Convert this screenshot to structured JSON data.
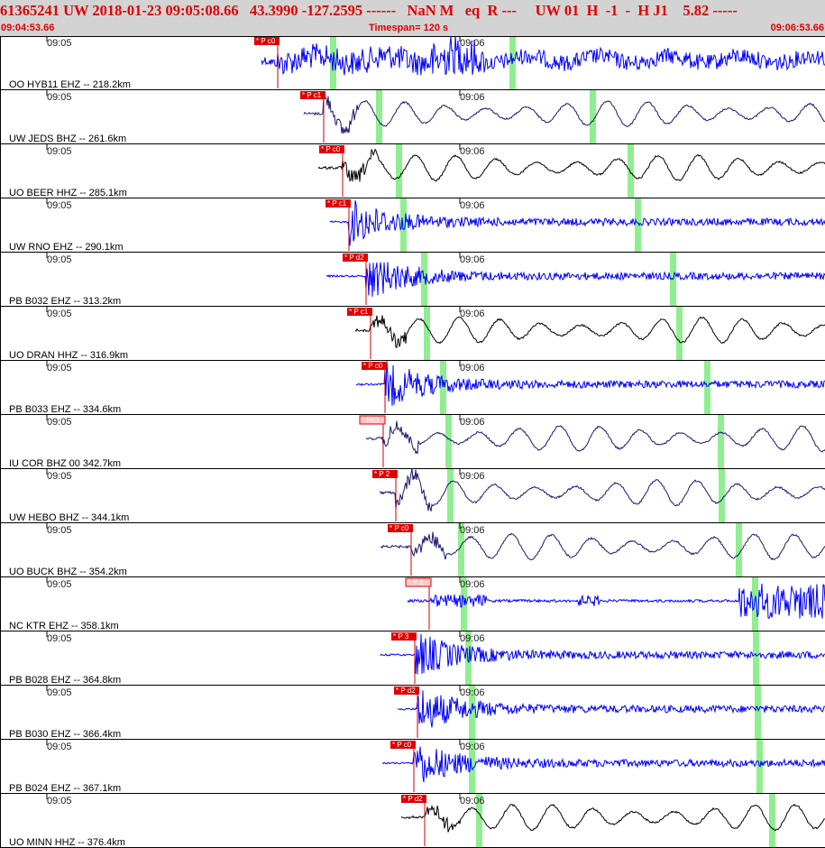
{
  "header": {
    "title_line": "61365241 UW 2018-01-23 09:05:08.66   43.3990 -127.2595 ------   NaN M   eq  R ---     UW 01  H  -1  -  H J1    5.82 -----",
    "start_time": "09:04:53.66",
    "timespan": "Timespan= 120 s",
    "end_time": "09:06:53.66"
  },
  "colors": {
    "header_bg": "#d3d3d3",
    "header_text": "#e00000",
    "pick_box": "#e00000",
    "pick_box_light": "#ffc8c8",
    "pick_line": "#cc0000",
    "s_marker": "#90ee90",
    "trace_blue": "#0000ff",
    "trace_navy": "#1a1a6e",
    "trace_black": "#000000"
  },
  "time_labels": [
    "09:05",
    "09:06"
  ],
  "channels": [
    {
      "label": "OO HYB11 EHZ -- 218.2km",
      "pick": "P c0",
      "pick_style": "solid",
      "color": "blue",
      "style": "noise"
    },
    {
      "label": "UW JEDS BHZ -- 261.6km",
      "pick": "P c1",
      "pick_style": "solid",
      "color": "navy",
      "style": "wave"
    },
    {
      "label": "UO BEER HHZ -- 285.1km",
      "pick": "P c0",
      "pick_style": "solid",
      "color": "black",
      "style": "wave"
    },
    {
      "label": "UW RNO EHZ -- 290.1km",
      "pick": "P c1",
      "pick_style": "solid",
      "color": "blue",
      "style": "burst"
    },
    {
      "label": "PB B032 EHZ -- 313.2km",
      "pick": "P d2",
      "pick_style": "solid",
      "color": "blue",
      "style": "burst"
    },
    {
      "label": "UO DRAN HHZ -- 316.9km",
      "pick": "P c1",
      "pick_style": "solid",
      "color": "black",
      "style": "wave"
    },
    {
      "label": "PB B033 EHZ -- 334.6km",
      "pick": "P c0",
      "pick_style": "solid",
      "color": "blue",
      "style": "burst"
    },
    {
      "label": "IU COR BHZ 00 342.7km",
      "pick": "Pc3",
      "pick_style": "light",
      "color": "navy",
      "style": "wave"
    },
    {
      "label": "UW HEBO BHZ -- 344.1km",
      "pick": "P 2",
      "pick_style": "solid",
      "color": "navy",
      "style": "wave"
    },
    {
      "label": "UO BUCK BHZ -- 354.2km",
      "pick": "P c0",
      "pick_style": "solid",
      "color": "navy",
      "style": "wave"
    },
    {
      "label": "NC KTR EHZ -- 358.1km",
      "pick": "P 2",
      "pick_style": "light",
      "color": "blue",
      "style": "ktr"
    },
    {
      "label": "PB B028 EHZ -- 364.8km",
      "pick": "P 3",
      "pick_style": "solid",
      "color": "blue",
      "style": "burst"
    },
    {
      "label": "PB B030 EHZ -- 366.4km",
      "pick": "P d2",
      "pick_style": "solid",
      "color": "blue",
      "style": "burst"
    },
    {
      "label": "PB B024 EHZ -- 367.1km",
      "pick": "P c0",
      "pick_style": "solid",
      "color": "blue",
      "style": "burst"
    },
    {
      "label": "UO MINN HHZ -- 376.4km",
      "pick": "P d2",
      "pick_style": "solid",
      "color": "black",
      "style": "wave"
    }
  ]
}
